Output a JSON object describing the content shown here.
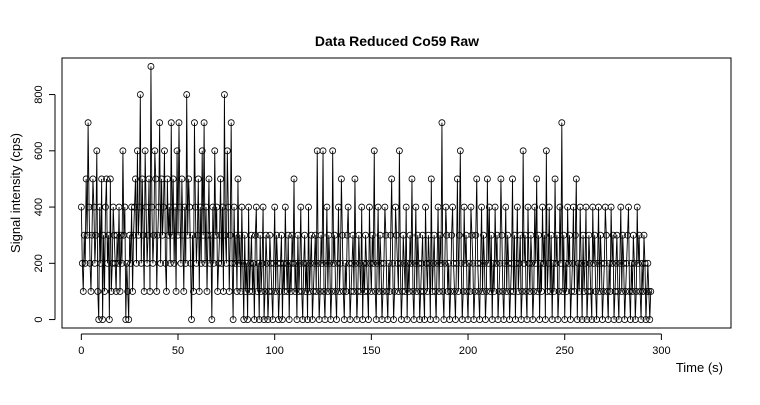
{
  "chart_data": {
    "type": "line",
    "title": "Data Reduced Co59 Raw",
    "xlabel": "Time (s)",
    "ylabel": "Signal intensity (cps)",
    "xlim": [
      -10,
      336
    ],
    "ylim": [
      -30,
      930
    ],
    "x_ticks": [
      "0",
      "50",
      "100",
      "150",
      "200",
      "250",
      "300"
    ],
    "y_ticks": [
      "0",
      "200",
      "400",
      "600",
      "800"
    ],
    "grid": false,
    "legend": "none",
    "marker": "open-circle",
    "sample_interval_s": 0.5,
    "series": [
      {
        "values": [
          400,
          200,
          100,
          300,
          200,
          500,
          300,
          700,
          400,
          200,
          100,
          300,
          500,
          400,
          200,
          300,
          600,
          100,
          0,
          400,
          200,
          500,
          0,
          300,
          100,
          400,
          500,
          200,
          300,
          0,
          500,
          100,
          200,
          400,
          300,
          200,
          100,
          300,
          200,
          400,
          100,
          300,
          200,
          600,
          300,
          400,
          0,
          200,
          100,
          0,
          300,
          200,
          400,
          100,
          300,
          400,
          500,
          200,
          600,
          300,
          400,
          800,
          200,
          500,
          300,
          100,
          600,
          400,
          200,
          300,
          500,
          100,
          900,
          400,
          200,
          300,
          600,
          500,
          100,
          300,
          400,
          700,
          200,
          500,
          300,
          400,
          600,
          200,
          100,
          500,
          300,
          400,
          200,
          700,
          300,
          500,
          200,
          400,
          100,
          600,
          300,
          700,
          400,
          200,
          500,
          300,
          100,
          400,
          200,
          800,
          300,
          500,
          400,
          200,
          0,
          300,
          100,
          700,
          400,
          200,
          300,
          500,
          100,
          400,
          200,
          600,
          300,
          700,
          200,
          400,
          100,
          300,
          500,
          200,
          300,
          0,
          400,
          200,
          600,
          300,
          400,
          100,
          200,
          300,
          500,
          200,
          400,
          100,
          800,
          300,
          200,
          600,
          400,
          100,
          300,
          700,
          200,
          0,
          400,
          200,
          300,
          100,
          500,
          200,
          300,
          100,
          400,
          200,
          0,
          300,
          100,
          200,
          0,
          400,
          100,
          200,
          300,
          100,
          200,
          0,
          300,
          400,
          100,
          200,
          0,
          300,
          100,
          200,
          400,
          0,
          100,
          300,
          200,
          0,
          100,
          300,
          200,
          100,
          0,
          200,
          400,
          100,
          300,
          200,
          0,
          100,
          200,
          300,
          0,
          200,
          100,
          400,
          200,
          100,
          300,
          0,
          200,
          100,
          300,
          200,
          500,
          100,
          200,
          0,
          300,
          100,
          200,
          400,
          100,
          0,
          200,
          300,
          100,
          200,
          0,
          400,
          100,
          200,
          300,
          0,
          100,
          200,
          300,
          100,
          600,
          200,
          0,
          100,
          300,
          200,
          600,
          100,
          0,
          200,
          400,
          100,
          300,
          200,
          0,
          100,
          600,
          200,
          300,
          100,
          0,
          200,
          400,
          100,
          200,
          500,
          300,
          100,
          0,
          200,
          100,
          300,
          400,
          200,
          0,
          100,
          200,
          300,
          100,
          500,
          200,
          0,
          100,
          300,
          200,
          100,
          400,
          0,
          200,
          100,
          300,
          200,
          100,
          0,
          400,
          200,
          100,
          300,
          200,
          600,
          100,
          0,
          200,
          400,
          100,
          300,
          200,
          0,
          100,
          200,
          400,
          300,
          100,
          0,
          200,
          100,
          300,
          500,
          200,
          0,
          100,
          400,
          300,
          200,
          100,
          600,
          200,
          0,
          100,
          300,
          200,
          100,
          400,
          0,
          200,
          100,
          300,
          200,
          500,
          100,
          0,
          200,
          400,
          100,
          300,
          200,
          0,
          100,
          200,
          300,
          100,
          0,
          400,
          200,
          100,
          300,
          200,
          0,
          500,
          100,
          200,
          300,
          100,
          0,
          200,
          400,
          100,
          300,
          200,
          700,
          100,
          0,
          200,
          400,
          300,
          100,
          200,
          0,
          100,
          300,
          400,
          200,
          100,
          0,
          200,
          500,
          100,
          300,
          600,
          200,
          0,
          100,
          400,
          200,
          300,
          100,
          0,
          200,
          100,
          400,
          300,
          200,
          0,
          100,
          300,
          500,
          200,
          100,
          0,
          200,
          400,
          100,
          300,
          200,
          0,
          100,
          500,
          200,
          400,
          100,
          300,
          0,
          200,
          100,
          400,
          200,
          300,
          0,
          100,
          200,
          500,
          300,
          100,
          0,
          200,
          400,
          100,
          300,
          200,
          0,
          100,
          200,
          500,
          100,
          300,
          0,
          200,
          400,
          100,
          200,
          300,
          0,
          100,
          600,
          200,
          300,
          100,
          0,
          400,
          200,
          100,
          300,
          200,
          0,
          100,
          400,
          200,
          500,
          100,
          300,
          0,
          200,
          100,
          400,
          200,
          300,
          0,
          600,
          100,
          200,
          400,
          100,
          300,
          0,
          200,
          100,
          500,
          200,
          300,
          0,
          100,
          400,
          200,
          700,
          100,
          300,
          0,
          200,
          100,
          400,
          200,
          300,
          0,
          100,
          200,
          400,
          100,
          300,
          500,
          0,
          200,
          100,
          400,
          200,
          0,
          300,
          100,
          200,
          400,
          0,
          100,
          300,
          200,
          100,
          0,
          400,
          200,
          300,
          100,
          0,
          200,
          400,
          100,
          300,
          200,
          0,
          100,
          200,
          400,
          300,
          100,
          0,
          200,
          100,
          400,
          200,
          300,
          0,
          100,
          200,
          300,
          100,
          0,
          200,
          400,
          100,
          300,
          200,
          0,
          100,
          200,
          300,
          400,
          100,
          0,
          200,
          100,
          300,
          200,
          0,
          100,
          400,
          200,
          300,
          100,
          0,
          200,
          100,
          300,
          200,
          0,
          100,
          200,
          100,
          0,
          100
        ]
      }
    ]
  }
}
